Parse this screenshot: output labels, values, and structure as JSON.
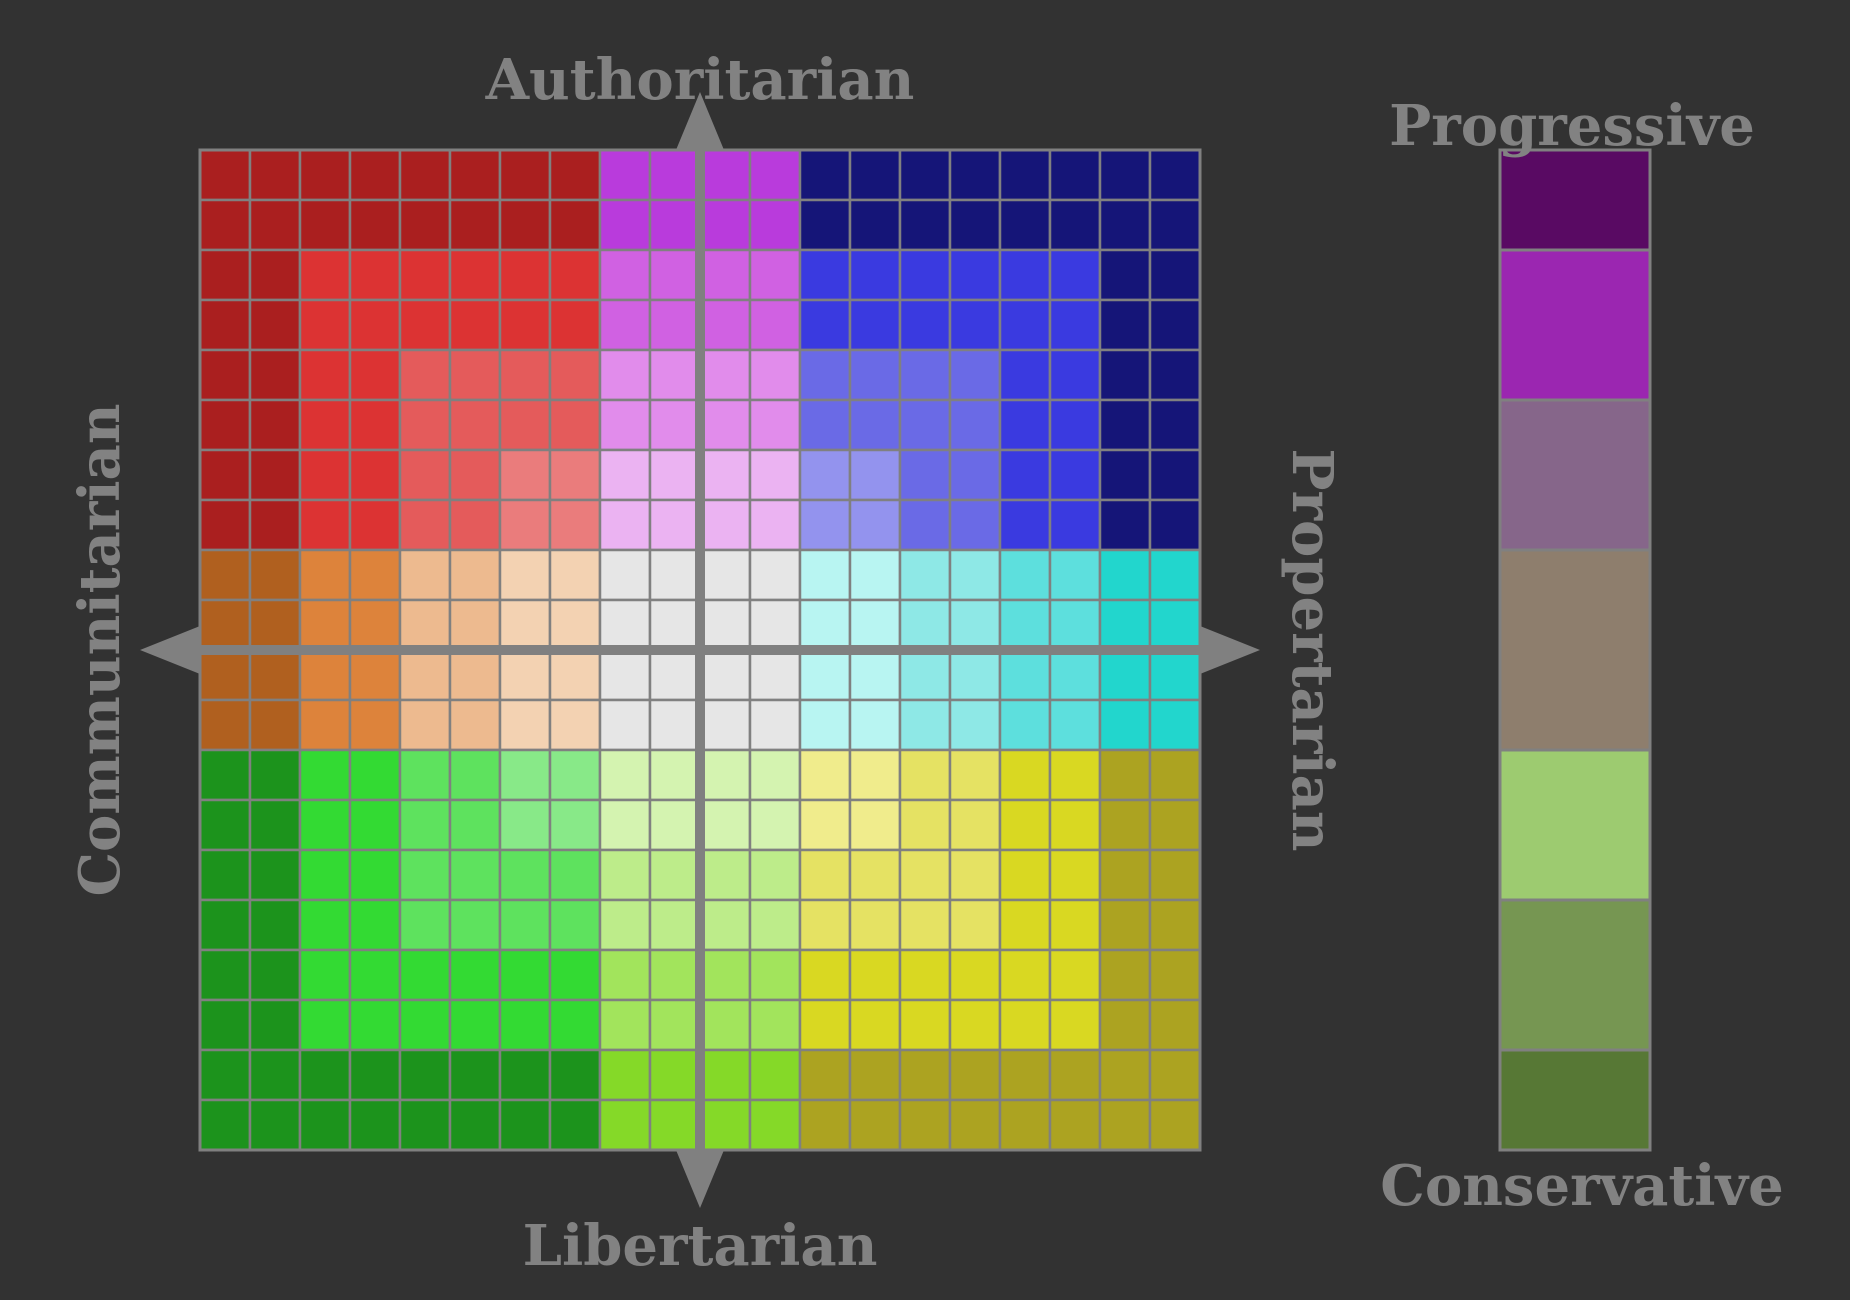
{
  "labels": {
    "top": "Authoritarian",
    "bottom": "Libertarian",
    "left": "Communitarian",
    "right": "Propertarian",
    "scale_top": "Progressive",
    "scale_bottom": "Conservative"
  },
  "colors": {
    "background": "#323232",
    "grid_line": "#808080",
    "axis": "#808080",
    "text": "#828282"
  },
  "legend": {
    "A": "#aa1f1f",
    "B": "#dc3333",
    "C": "#e45b5b",
    "D": "#ea7c7c",
    "E": "#b93bdc",
    "F": "#d061e2",
    "G": "#e18ceb",
    "H": "#ebb3f2",
    "I": "#151578",
    "J": "#3a3ae0",
    "K": "#6a6ae6",
    "L": "#9393ee",
    "M": "#b0601f",
    "N": "#dd833b",
    "O": "#edba8f",
    "P": "#f3d2b2",
    "Q": "#e6e6e6",
    "R": "#b8f5f2",
    "S": "#8ee8e6",
    "T": "#5ddfdd",
    "U": "#22d6cd",
    "V": "#1c931c",
    "W": "#33da33",
    "X": "#5ee25e",
    "Y": "#88e988",
    "Z": "#d4f3b0",
    "a": "#bdec8a",
    "b": "#a2e45c",
    "c": "#85d928",
    "d": "#f0ec8c",
    "e": "#e5e263",
    "f": "#d9d822",
    "g": "#aca321"
  },
  "grid": [
    "AAAAAAAAEEEEIIIIIIII",
    "AAAAAAAAEEEEIIIIIIII",
    "AABBBBBBFFFFJJJJJJII",
    "AABBBBBBFFFFJJJJJJII",
    "AABBCCCCGGGGKKKKJJII",
    "AABBCCCCGGGGKKKKJJII",
    "AABBCCDDHHHHLLKKJJII",
    "AABBCCDDHHHHLLKKJJII",
    "MMNNOOPPQQQQRRSSTTUU",
    "MMNNOOPPQQQQRRSSTTUU",
    "MMNNOOPPQQQQRRSSTTUU",
    "MMNNOOPPQQQQRRSSTTUU",
    "VVWWXXYYZZZZddeeffgg",
    "VVWWXXYYZZZZddeeffgg",
    "VVWWXXXXaaaaeeeeffgg",
    "VVWWXXXXaaaaeeeeffgg",
    "VVWWWWWWbbbbffffffgg",
    "VVWWWWWWbbbbffffffgg",
    "VVVVVVVVccccgggggggg",
    "VVVVVVVVccccgggggggg"
  ],
  "scale": [
    {
      "color": "#590a63",
      "weight": 2
    },
    {
      "color": "#9b26b1",
      "weight": 3
    },
    {
      "color": "#86668a",
      "weight": 3
    },
    {
      "color": "#8e7e6d",
      "weight": 4
    },
    {
      "color": "#9dcb70",
      "weight": 3
    },
    {
      "color": "#769652",
      "weight": 3
    },
    {
      "color": "#577835",
      "weight": 2
    }
  ]
}
